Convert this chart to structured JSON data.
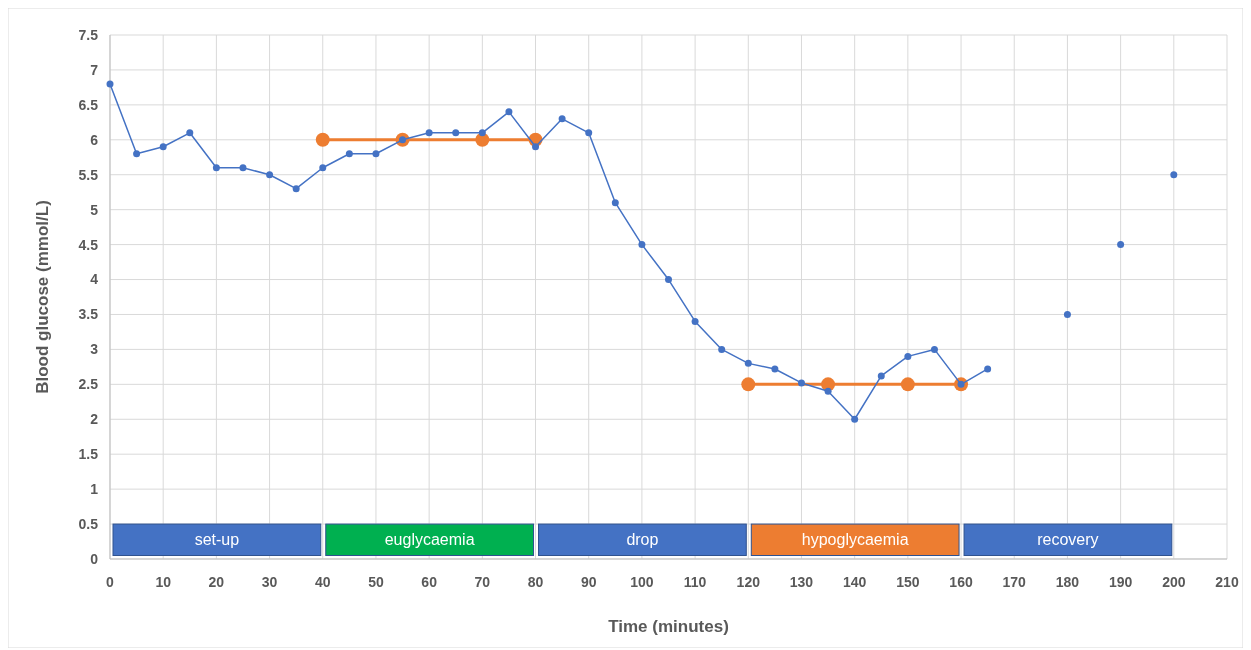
{
  "chart_data": {
    "type": "line",
    "xlabel": "Time (minutes)",
    "ylabel": "Blood glucose (mmol/L)",
    "xlim": [
      0,
      210
    ],
    "xticks": [
      0,
      10,
      20,
      30,
      40,
      50,
      60,
      70,
      80,
      90,
      100,
      110,
      120,
      130,
      140,
      150,
      160,
      170,
      180,
      190,
      200,
      210
    ],
    "ylim": [
      0,
      7.5
    ],
    "yticks": [
      0,
      0.5,
      1,
      1.5,
      2,
      2.5,
      3,
      3.5,
      4,
      4.5,
      5,
      5.5,
      6,
      6.5,
      7,
      7.5
    ],
    "grid": true,
    "marker": "circle",
    "line_style": "solid",
    "series": [
      {
        "color": "#4472c4",
        "x": [
          0,
          5,
          10,
          15,
          20,
          25,
          30,
          35,
          40,
          45,
          50,
          55,
          60,
          65,
          70,
          75,
          80,
          85,
          90,
          95,
          100,
          105,
          110,
          115,
          120,
          125,
          130,
          135,
          140,
          145,
          150,
          155,
          160,
          165,
          170,
          180,
          185,
          190,
          195,
          200
        ],
        "values": [
          6.8,
          5.8,
          5.9,
          6.1,
          5.6,
          5.6,
          5.5,
          5.3,
          5.6,
          5.8,
          5.8,
          6.0,
          6.1,
          6.1,
          6.1,
          6.4,
          5.9,
          6.3,
          6.1,
          5.1,
          4.5,
          4.0,
          3.4,
          3.0,
          2.8,
          2.72,
          2.52,
          2.4,
          2.0,
          2.62,
          2.9,
          3.0,
          2.5,
          2.72,
          null,
          3.5,
          null,
          4.5,
          null,
          5.5
        ]
      },
      {
        "color": "#ed7d31",
        "x": [
          40,
          55,
          70,
          80,
          100,
          120,
          135,
          150,
          160
        ],
        "values": [
          6.0,
          6.0,
          6.0,
          6.0,
          null,
          2.5,
          2.5,
          2.5,
          2.5
        ]
      }
    ],
    "bands": [
      {
        "axis": "x",
        "from": 0,
        "to": 40,
        "label": "set-up",
        "color": "#4472c4"
      },
      {
        "axis": "x",
        "from": 40,
        "to": 80,
        "label": "euglycaemia",
        "color": "#00b050"
      },
      {
        "axis": "x",
        "from": 80,
        "to": 120,
        "label": "drop",
        "color": "#4472c4"
      },
      {
        "axis": "x",
        "from": 120,
        "to": 160,
        "label": "hypoglycaemia",
        "color": "#ed7d31"
      },
      {
        "axis": "x",
        "from": 160,
        "to": 200,
        "label": "recovery",
        "color": "#4472c4"
      }
    ]
  }
}
